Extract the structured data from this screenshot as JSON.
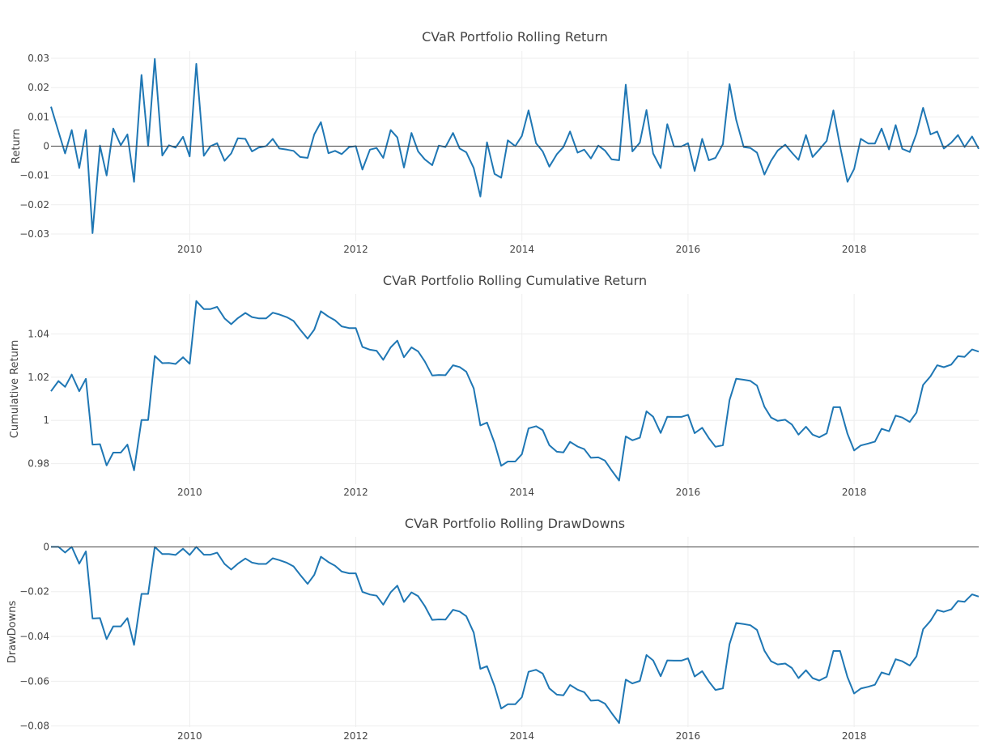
{
  "chart_data": [
    {
      "type": "line",
      "title": "CVaR Portfolio Rolling Return",
      "ylabel": "Return",
      "xlabel": "",
      "xlim": [
        2008.33,
        2019.5
      ],
      "ylim": [
        -0.0325,
        0.0325
      ],
      "grid": true,
      "zero_line": true,
      "y_ticks": [
        -0.03,
        -0.02,
        -0.01,
        0,
        0.01,
        0.02,
        0.03
      ],
      "y_tick_labels": [
        "−0.03",
        "−0.02",
        "−0.01",
        "0",
        "0.01",
        "0.02",
        "0.03"
      ],
      "x_ticks": [
        2010,
        2012,
        2014,
        2016,
        2018
      ],
      "x_tick_labels": [
        "2010",
        "2012",
        "2014",
        "2016",
        "2018"
      ],
      "series": [
        {
          "x": [
            2008.33,
            2008.42,
            2008.5,
            2008.58,
            2008.67,
            2008.75,
            2008.83,
            2008.92,
            2009.0,
            2009.08,
            2009.17,
            2009.25,
            2009.33,
            2009.42,
            2009.5,
            2009.58,
            2009.67,
            2009.75,
            2009.83,
            2009.92,
            2010.0,
            2010.08,
            2010.17,
            2010.25,
            2010.33,
            2010.42,
            2010.5,
            2010.58,
            2010.67,
            2010.75,
            2010.83,
            2010.92,
            2011.0,
            2011.08,
            2011.17,
            2011.25,
            2011.33,
            2011.42,
            2011.5,
            2011.58,
            2011.67,
            2011.75,
            2011.83,
            2011.92,
            2012.0,
            2012.08,
            2012.17,
            2012.25,
            2012.33,
            2012.42,
            2012.5,
            2012.58,
            2012.67,
            2012.75,
            2012.83,
            2012.92,
            2013.0,
            2013.08,
            2013.17,
            2013.25,
            2013.33,
            2013.42,
            2013.5,
            2013.58,
            2013.67,
            2013.75,
            2013.83,
            2013.92,
            2014.0,
            2014.08,
            2014.17,
            2014.25,
            2014.33,
            2014.42,
            2014.5,
            2014.58,
            2014.67,
            2014.75,
            2014.83,
            2014.92,
            2015.0,
            2015.08,
            2015.17,
            2015.25,
            2015.33,
            2015.42,
            2015.5,
            2015.58,
            2015.67,
            2015.75,
            2015.83,
            2015.92,
            2016.0,
            2016.08,
            2016.17,
            2016.25,
            2016.33,
            2016.42,
            2016.5,
            2016.58,
            2016.67,
            2016.75,
            2016.83,
            2016.92,
            2017.0,
            2017.08,
            2017.17,
            2017.25,
            2017.33,
            2017.42,
            2017.5,
            2017.58,
            2017.67,
            2017.75,
            2017.83,
            2017.92,
            2018.0,
            2018.08,
            2018.17,
            2018.25,
            2018.33,
            2018.42,
            2018.5,
            2018.58,
            2018.67,
            2018.75,
            2018.83,
            2018.92,
            2019.0,
            2019.08,
            2019.17,
            2019.25,
            2019.33,
            2019.42,
            2019.5
          ],
          "values": [
            0.0135,
            0.005,
            -0.0025,
            0.0055,
            -0.0075,
            0.0055,
            -0.0297,
            0.0002,
            -0.01,
            0.006,
            0.0003,
            0.004,
            -0.0122,
            0.0243,
            0.0,
            0.0298,
            -0.0032,
            0.0003,
            -0.0005,
            0.0032,
            -0.0035,
            0.0281,
            -0.0033,
            0.0,
            0.001,
            -0.005,
            -0.0025,
            0.0027,
            0.0025,
            -0.0018,
            -0.0005,
            0.0,
            0.0025,
            -0.0008,
            -0.0012,
            -0.0016,
            -0.0037,
            -0.004,
            0.004,
            0.0082,
            -0.0024,
            -0.0016,
            -0.0027,
            -0.0003,
            0.0,
            -0.008,
            -0.0012,
            -0.0006,
            -0.004,
            0.0055,
            0.003,
            -0.0073,
            0.0045,
            -0.0018,
            -0.0045,
            -0.0065,
            0.0002,
            -0.0003,
            0.0045,
            -0.0008,
            -0.0021,
            -0.0075,
            -0.0172,
            0.0013,
            -0.0095,
            -0.0108,
            0.002,
            0.0,
            0.0035,
            0.0122,
            0.001,
            -0.0018,
            -0.007,
            -0.0028,
            -0.0003,
            0.005,
            -0.0022,
            -0.0012,
            -0.0042,
            0.0002,
            -0.0015,
            -0.0045,
            -0.0048,
            0.021,
            -0.0018,
            0.0012,
            0.0123,
            -0.0025,
            -0.0075,
            0.0075,
            -0.0001,
            -0.0001,
            0.001,
            -0.0085,
            0.0025,
            -0.0048,
            -0.004,
            0.0007,
            0.0212,
            0.009,
            -0.0003,
            -0.0006,
            -0.0022,
            -0.0097,
            -0.005,
            -0.0015,
            0.0005,
            -0.0022,
            -0.0047,
            0.0038,
            -0.0037,
            -0.0012,
            0.0018,
            0.0122,
            0.0,
            -0.0122,
            -0.0078,
            0.0025,
            0.0009,
            0.0009,
            0.006,
            -0.0011,
            0.0072,
            -0.0009,
            -0.002,
            0.0043,
            0.0131,
            0.004,
            0.005,
            -0.0008,
            0.0012,
            0.0038,
            -0.0003,
            0.0033,
            -0.0009
          ]
        }
      ]
    },
    {
      "type": "line",
      "title": "CVaR Portfolio Rolling Cumulative Return",
      "ylabel": "Cumulative Return",
      "xlabel": "",
      "xlim": [
        2008.33,
        2019.5
      ],
      "ylim": [
        0.9705,
        1.0585
      ],
      "grid": true,
      "zero_line": false,
      "y_ticks": [
        0.98,
        1.0,
        1.02,
        1.04
      ],
      "y_tick_labels": [
        "0.98",
        "1",
        "1.02",
        "1.04"
      ],
      "x_ticks": [
        2010,
        2012,
        2014,
        2016,
        2018
      ],
      "x_tick_labels": [
        "2010",
        "2012",
        "2014",
        "2016",
        "2018"
      ],
      "series": [
        {
          "x": [
            2008.33,
            2008.42,
            2008.5,
            2008.58,
            2008.67,
            2008.75,
            2008.83,
            2008.92,
            2009.0,
            2009.08,
            2009.17,
            2009.25,
            2009.33,
            2009.42,
            2009.5,
            2009.58,
            2009.67,
            2009.75,
            2009.83,
            2009.92,
            2010.0,
            2010.08,
            2010.17,
            2010.25,
            2010.33,
            2010.42,
            2010.5,
            2010.58,
            2010.67,
            2010.75,
            2010.83,
            2010.92,
            2011.0,
            2011.08,
            2011.17,
            2011.25,
            2011.33,
            2011.42,
            2011.5,
            2011.58,
            2011.67,
            2011.75,
            2011.83,
            2011.92,
            2012.0,
            2012.08,
            2012.17,
            2012.25,
            2012.33,
            2012.42,
            2012.5,
            2012.58,
            2012.67,
            2012.75,
            2012.83,
            2012.92,
            2013.0,
            2013.08,
            2013.17,
            2013.25,
            2013.33,
            2013.42,
            2013.5,
            2013.58,
            2013.67,
            2013.75,
            2013.83,
            2013.92,
            2014.0,
            2014.08,
            2014.17,
            2014.25,
            2014.33,
            2014.42,
            2014.5,
            2014.58,
            2014.67,
            2014.75,
            2014.83,
            2014.92,
            2015.0,
            2015.08,
            2015.17,
            2015.25,
            2015.33,
            2015.42,
            2015.5,
            2015.58,
            2015.67,
            2015.75,
            2015.83,
            2015.92,
            2016.0,
            2016.08,
            2016.17,
            2016.25,
            2016.33,
            2016.42,
            2016.5,
            2016.58,
            2016.67,
            2016.75,
            2016.83,
            2016.92,
            2017.0,
            2017.08,
            2017.17,
            2017.25,
            2017.33,
            2017.42,
            2017.5,
            2017.58,
            2017.67,
            2017.75,
            2017.83,
            2017.92,
            2018.0,
            2018.08,
            2018.17,
            2018.25,
            2018.33,
            2018.42,
            2018.5,
            2018.58,
            2018.67,
            2018.75,
            2018.83,
            2018.92,
            2019.0,
            2019.08,
            2019.17,
            2019.25,
            2019.33,
            2019.42,
            2019.5
          ],
          "values": [
            1.0135,
            1.0182,
            1.0155,
            1.0212,
            1.0135,
            1.0192,
            0.9888,
            0.989,
            0.9792,
            0.9851,
            0.9851,
            0.9888,
            0.9769,
            1.0002,
            1.0002,
            1.0298,
            1.0265,
            1.0266,
            1.0261,
            1.0292,
            1.0262,
            1.0552,
            1.0515,
            1.0515,
            1.0525,
            1.0472,
            1.0445,
            1.0473,
            1.0497,
            1.0478,
            1.0472,
            1.0472,
            1.0498,
            1.049,
            1.0477,
            1.046,
            1.042,
            1.0378,
            1.042,
            1.0505,
            1.048,
            1.0463,
            1.0435,
            1.0427,
            1.0427,
            1.034,
            1.0327,
            1.0322,
            1.028,
            1.0338,
            1.0369,
            1.0292,
            1.0338,
            1.0319,
            1.0273,
            1.0208,
            1.021,
            1.0209,
            1.0255,
            1.0247,
            1.0225,
            1.0148,
            0.9977,
            0.999,
            0.9896,
            0.979,
            0.981,
            0.981,
            0.9844,
            0.9963,
            0.9973,
            0.9955,
            0.9885,
            0.9855,
            0.9852,
            0.9901,
            0.9879,
            0.9867,
            0.9827,
            0.9829,
            0.9814,
            0.9769,
            0.9722,
            0.9926,
            0.9908,
            0.992,
            1.0042,
            1.0017,
            0.9942,
            1.0017,
            1.0016,
            1.0016,
            1.0026,
            0.9941,
            0.9966,
            0.9918,
            0.9878,
            0.9885,
            1.0094,
            1.0193,
            1.0188,
            1.0183,
            1.0161,
            1.0063,
            1.0013,
            0.9998,
            1.0003,
            0.9981,
            0.9934,
            0.9971,
            0.9934,
            0.9922,
            0.994,
            1.0061,
            1.0061,
            0.9938,
            0.9861,
            0.9884,
            0.9893,
            0.9902,
            0.9961,
            0.995,
            1.0022,
            1.0013,
            0.9993,
            1.0036,
            1.0164,
            1.0204,
            1.0255,
            1.0246,
            1.0258,
            1.0297,
            1.0294,
            1.0328,
            1.0318
          ]
        }
      ]
    },
    {
      "type": "line",
      "title": "CVaR Portfolio Rolling DrawDowns",
      "ylabel": "DrawDowns",
      "xlabel": "",
      "xlim": [
        2008.33,
        2019.5
      ],
      "ylim": [
        -0.0805,
        0.0045
      ],
      "grid": true,
      "zero_line": true,
      "y_ticks": [
        -0.08,
        -0.06,
        -0.04,
        -0.02,
        0
      ],
      "y_tick_labels": [
        "−0.08",
        "−0.06",
        "−0.04",
        "−0.02",
        "0"
      ],
      "x_ticks": [
        2010,
        2012,
        2014,
        2016,
        2018
      ],
      "x_tick_labels": [
        "2010",
        "2012",
        "2014",
        "2016",
        "2018"
      ],
      "series": [
        {
          "x": [
            2008.33,
            2008.42,
            2008.5,
            2008.58,
            2008.67,
            2008.75,
            2008.83,
            2008.92,
            2009.0,
            2009.08,
            2009.17,
            2009.25,
            2009.33,
            2009.42,
            2009.5,
            2009.58,
            2009.67,
            2009.75,
            2009.83,
            2009.92,
            2010.0,
            2010.08,
            2010.17,
            2010.25,
            2010.33,
            2010.42,
            2010.5,
            2010.58,
            2010.67,
            2010.75,
            2010.83,
            2010.92,
            2011.0,
            2011.08,
            2011.17,
            2011.25,
            2011.33,
            2011.42,
            2011.5,
            2011.58,
            2011.67,
            2011.75,
            2011.83,
            2011.92,
            2012.0,
            2012.08,
            2012.17,
            2012.25,
            2012.33,
            2012.42,
            2012.5,
            2012.58,
            2012.67,
            2012.75,
            2012.83,
            2012.92,
            2013.0,
            2013.08,
            2013.17,
            2013.25,
            2013.33,
            2013.42,
            2013.5,
            2013.58,
            2013.67,
            2013.75,
            2013.83,
            2013.92,
            2014.0,
            2014.08,
            2014.17,
            2014.25,
            2014.33,
            2014.42,
            2014.5,
            2014.58,
            2014.67,
            2014.75,
            2014.83,
            2014.92,
            2015.0,
            2015.08,
            2015.17,
            2015.25,
            2015.33,
            2015.42,
            2015.5,
            2015.58,
            2015.67,
            2015.75,
            2015.83,
            2015.92,
            2016.0,
            2016.08,
            2016.17,
            2016.25,
            2016.33,
            2016.42,
            2016.5,
            2016.58,
            2016.67,
            2016.75,
            2016.83,
            2016.92,
            2017.0,
            2017.08,
            2017.17,
            2017.25,
            2017.33,
            2017.42,
            2017.5,
            2017.58,
            2017.67,
            2017.75,
            2017.83,
            2017.92,
            2018.0,
            2018.08,
            2018.17,
            2018.25,
            2018.33,
            2018.42,
            2018.5,
            2018.58,
            2018.67,
            2018.75,
            2018.83,
            2018.92,
            2019.0,
            2019.08,
            2019.17,
            2019.25,
            2019.33,
            2019.42,
            2019.5
          ],
          "values": [
            0.0,
            0.0,
            -0.0025,
            0.0,
            -0.0075,
            -0.002,
            -0.032,
            -0.0318,
            -0.0412,
            -0.0355,
            -0.0355,
            -0.0318,
            -0.0438,
            -0.021,
            -0.021,
            0.0,
            -0.0032,
            -0.0032,
            -0.0036,
            -0.0008,
            -0.0036,
            0.0,
            -0.0035,
            -0.0035,
            -0.0026,
            -0.0076,
            -0.0101,
            -0.0075,
            -0.0052,
            -0.007,
            -0.0076,
            -0.0076,
            -0.0051,
            -0.0059,
            -0.0071,
            -0.0087,
            -0.0125,
            -0.0165,
            -0.0125,
            -0.0044,
            -0.0068,
            -0.0084,
            -0.011,
            -0.0118,
            -0.0118,
            -0.0201,
            -0.0213,
            -0.0218,
            -0.0258,
            -0.0203,
            -0.0173,
            -0.0246,
            -0.0203,
            -0.022,
            -0.0264,
            -0.0326,
            -0.0324,
            -0.0325,
            -0.0281,
            -0.0289,
            -0.031,
            -0.0383,
            -0.0545,
            -0.0533,
            -0.0622,
            -0.0722,
            -0.0703,
            -0.0703,
            -0.0671,
            -0.0558,
            -0.0549,
            -0.0566,
            -0.0632,
            -0.066,
            -0.0663,
            -0.0617,
            -0.0638,
            -0.0649,
            -0.0687,
            -0.0685,
            -0.07,
            -0.0742,
            -0.0787,
            -0.0593,
            -0.061,
            -0.0599,
            -0.0483,
            -0.0507,
            -0.0578,
            -0.0507,
            -0.0508,
            -0.0508,
            -0.0498,
            -0.0579,
            -0.0555,
            -0.0601,
            -0.0639,
            -0.0632,
            -0.0434,
            -0.034,
            -0.0345,
            -0.035,
            -0.0371,
            -0.0464,
            -0.0511,
            -0.0525,
            -0.0521,
            -0.0541,
            -0.0586,
            -0.0551,
            -0.0586,
            -0.0597,
            -0.058,
            -0.0465,
            -0.0465,
            -0.0582,
            -0.0655,
            -0.0633,
            -0.0625,
            -0.0616,
            -0.0561,
            -0.0571,
            -0.0502,
            -0.0511,
            -0.053,
            -0.0489,
            -0.0368,
            -0.033,
            -0.0282,
            -0.029,
            -0.0279,
            -0.0242,
            -0.0245,
            -0.0212,
            -0.0222
          ]
        }
      ]
    }
  ],
  "colors": {
    "series": "#1f77b4",
    "grid": "#eeeeee",
    "zero_line": "#444444",
    "text": "#444444"
  }
}
